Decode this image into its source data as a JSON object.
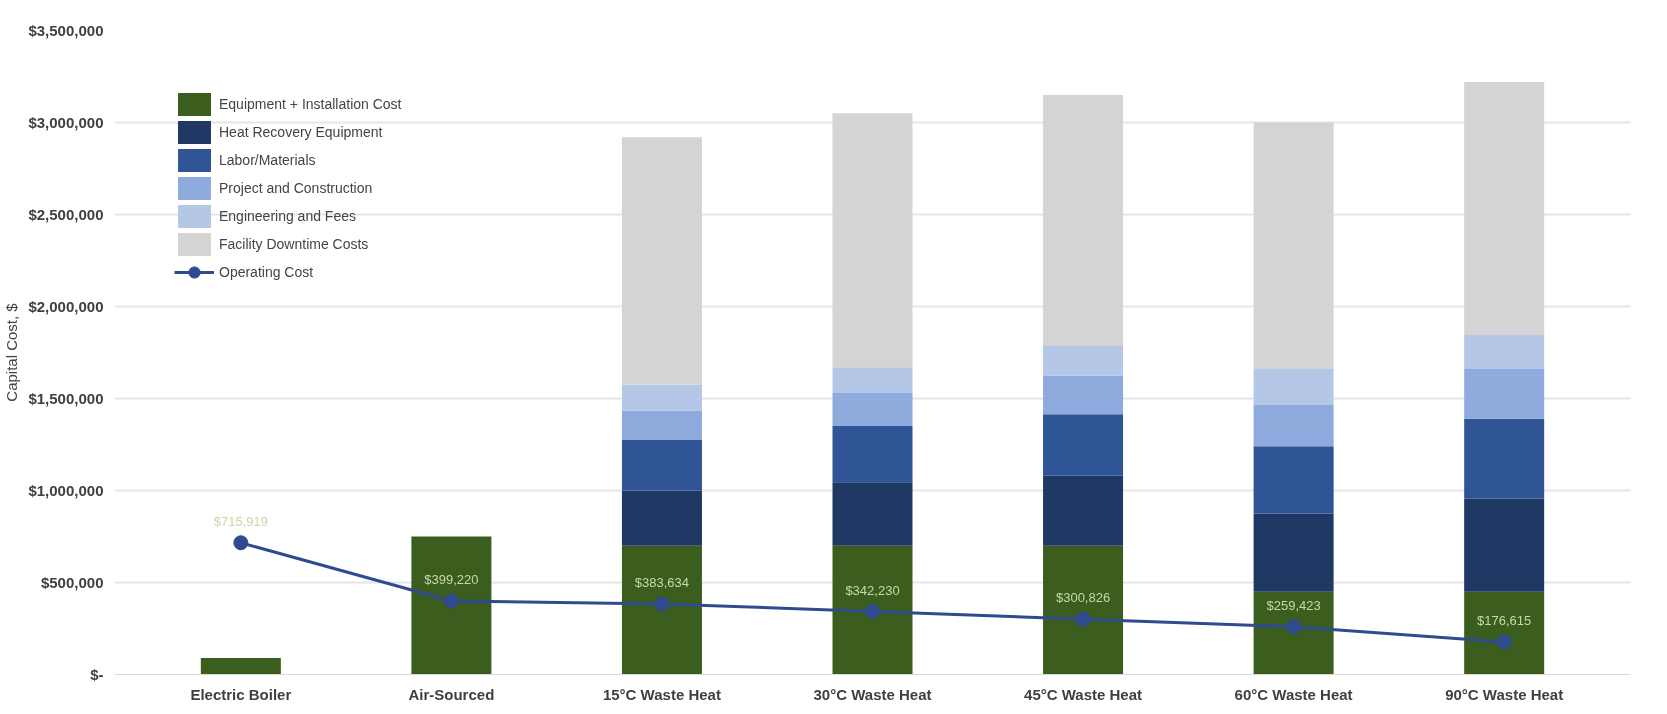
{
  "chart_data": {
    "type": "bar",
    "stacked": true,
    "ylabel": "Capital Cost, $",
    "categories": [
      "Electric Boiler",
      "Air-Sourced",
      "15°C Waste Heat",
      "30°C Waste Heat",
      "45°C Waste Heat",
      "60°C Waste Heat",
      "90°C Waste Heat"
    ],
    "series": [
      {
        "name": "Equipment + Installation Cost",
        "color": "#3b5e1f",
        "values": [
          90000,
          750000,
          700000,
          700000,
          700000,
          450000,
          450000
        ]
      },
      {
        "name": "Heat Recovery Equipment",
        "color": "#1f3864",
        "values": [
          null,
          null,
          300000,
          345000,
          380000,
          425000,
          505000
        ]
      },
      {
        "name": "Labor/Materials",
        "color": "#2f5597",
        "values": [
          null,
          null,
          275000,
          305000,
          335000,
          365000,
          435000
        ]
      },
      {
        "name": "Project and Construction",
        "color": "#8faadc",
        "values": [
          null,
          null,
          160000,
          180000,
          210000,
          225000,
          270000
        ]
      },
      {
        "name": "Engineering and Fees",
        "color": "#b4c7e7",
        "values": [
          null,
          null,
          140000,
          140000,
          160000,
          195000,
          185000
        ]
      },
      {
        "name": "Facility Downtime Costs",
        "color": "#d4d4d4",
        "values": [
          null,
          null,
          1345000,
          1380000,
          1365000,
          1340000,
          1375000
        ]
      },
      {
        "name": "Operating Cost",
        "type": "line",
        "color": "#2f4b8f",
        "marker": "circle",
        "values": [
          715919,
          399220,
          383634,
          342230,
          300826,
          259423,
          176615
        ],
        "value_labels": [
          "$715,919",
          "$399,220",
          "$383,634",
          "$342,230",
          "$300,826",
          "$259,423",
          "$176,615"
        ]
      }
    ],
    "ylim": [
      0,
      3500000
    ],
    "yticks": [
      {
        "value": 0,
        "label": "$-"
      },
      {
        "value": 500000,
        "label": "$500,000"
      },
      {
        "value": 1000000,
        "label": "$1,000,000"
      },
      {
        "value": 1500000,
        "label": "$1,500,000"
      },
      {
        "value": 2000000,
        "label": "$2,000,000"
      },
      {
        "value": 2500000,
        "label": "$2,500,000"
      },
      {
        "value": 3000000,
        "label": "$3,000,000"
      },
      {
        "value": 3500000,
        "label": "$3,500,000"
      }
    ],
    "grid": "y",
    "legend": "top left"
  }
}
